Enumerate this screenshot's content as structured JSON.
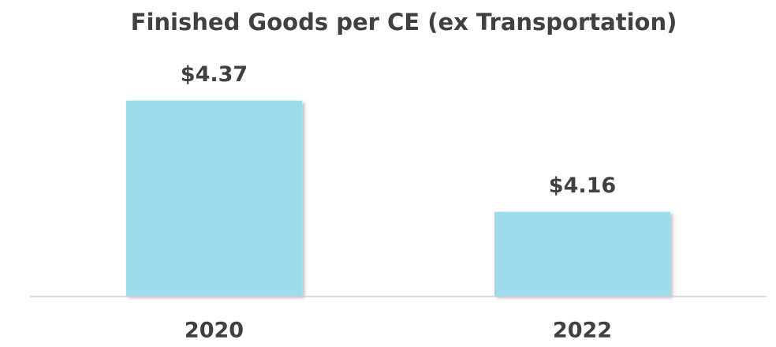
{
  "chart_data": {
    "type": "bar",
    "title": "Finished Goods per CE (ex Transportation)",
    "categories": [
      "2020",
      "2022"
    ],
    "values": [
      4.37,
      4.16
    ],
    "value_labels": [
      "$4.37",
      "$4.16"
    ],
    "color": "#9ddcec",
    "ylim": [
      4,
      4.45
    ],
    "grid": false
  }
}
